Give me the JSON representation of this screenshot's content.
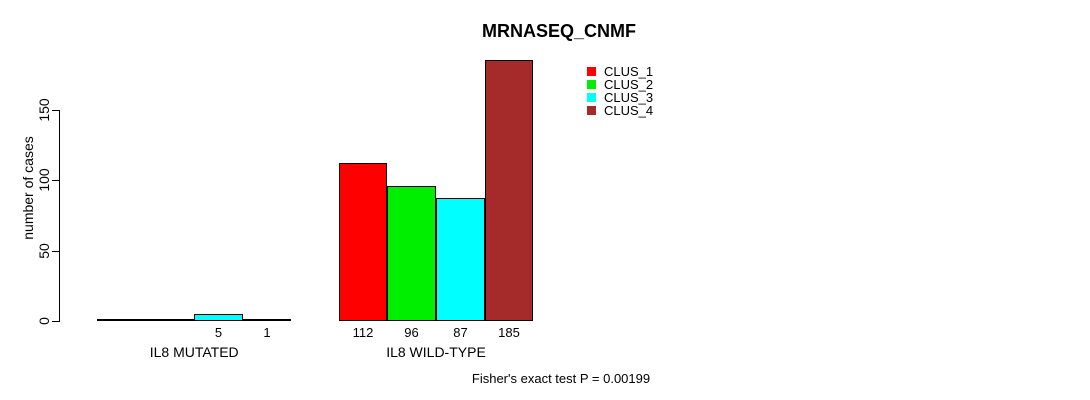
{
  "chart_data": {
    "type": "bar",
    "title": "MRNASEQ_CNMF",
    "xlabel": "",
    "ylabel": "number of cases",
    "ylim": [
      0,
      150
    ],
    "yticks": [
      0,
      50,
      100,
      150
    ],
    "grid": false,
    "legend_position": "top-right-inside",
    "categories": [
      "IL8 MUTATED",
      "IL8 WILD-TYPE"
    ],
    "series": [
      {
        "name": "CLUS_1",
        "color": "#ff0000",
        "values": [
          0,
          112
        ]
      },
      {
        "name": "CLUS_2",
        "color": "#00ee00",
        "values": [
          0,
          96
        ]
      },
      {
        "name": "CLUS_3",
        "color": "#00ffff",
        "values": [
          5,
          87
        ]
      },
      {
        "name": "CLUS_4",
        "color": "#a52a2a",
        "values": [
          1,
          185
        ]
      }
    ],
    "value_labels": [
      [
        "",
        "",
        "5",
        "1"
      ],
      [
        "112",
        "96",
        "87",
        "185"
      ]
    ],
    "annotation": "Fisher's exact test P = 0.00199",
    "axis_color": "#000000",
    "bar_border_color": "#000000"
  }
}
